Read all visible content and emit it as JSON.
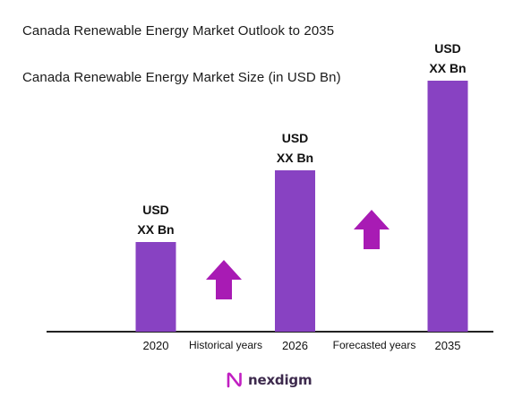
{
  "header": {
    "title": "Canada Renewable Energy Market Outlook to 2035",
    "subtitle": "Canada Renewable Energy Market Size (in USD Bn)"
  },
  "colors": {
    "bar": "#8842c2",
    "arrow": "#a81bb4",
    "axis": "#222222",
    "brand": "#3d2a4d"
  },
  "chart_data": {
    "type": "bar",
    "categories": [
      "2020",
      "2026",
      "2035"
    ],
    "values": [
      1,
      1.8,
      2.8
    ],
    "value_labels": [
      [
        "USD",
        "XX Bn"
      ],
      [
        "USD",
        "XX Bn"
      ],
      [
        "USD",
        "XX Bn"
      ]
    ],
    "ylim": [
      0,
      3
    ],
    "grid": false,
    "legend": "none",
    "annotations": [
      {
        "text": "Historical years",
        "icon": "up-arrow-icon"
      },
      {
        "text": "Forecasted years",
        "icon": "up-arrow-icon"
      }
    ]
  },
  "brand": {
    "name": "nexdigm",
    "icon": "nexdigm-logo-icon"
  }
}
